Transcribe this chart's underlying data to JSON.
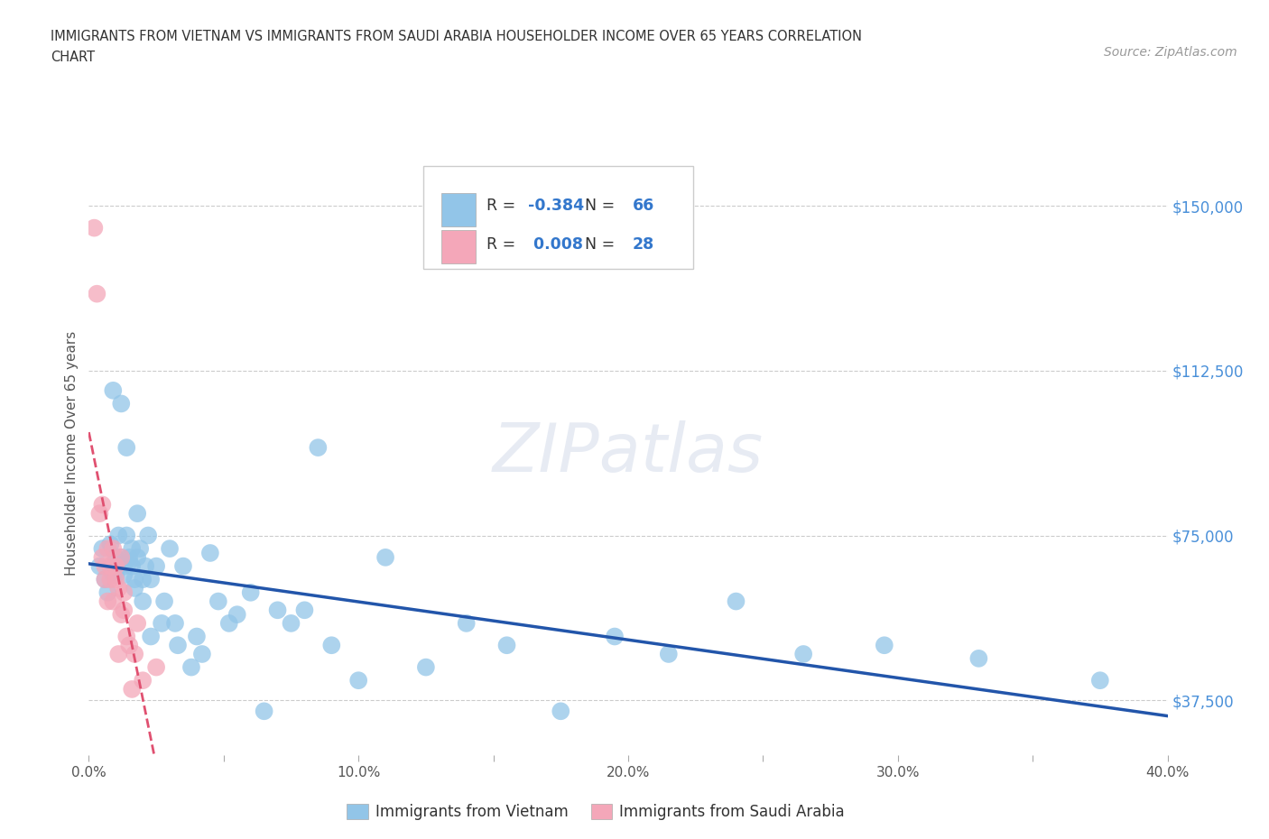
{
  "title_line1": "IMMIGRANTS FROM VIETNAM VS IMMIGRANTS FROM SAUDI ARABIA HOUSEHOLDER INCOME OVER 65 YEARS CORRELATION",
  "title_line2": "CHART",
  "source": "Source: ZipAtlas.com",
  "ylabel": "Householder Income Over 65 years",
  "xlim": [
    0.0,
    0.4
  ],
  "ylim": [
    25000,
    162500
  ],
  "yticks": [
    37500,
    75000,
    112500,
    150000
  ],
  "ytick_labels": [
    "$37,500",
    "$75,000",
    "$112,500",
    "$150,000"
  ],
  "xticks": [
    0.0,
    0.05,
    0.1,
    0.15,
    0.2,
    0.25,
    0.3,
    0.35,
    0.4
  ],
  "xtick_labels": [
    "0.0%",
    "",
    "10.0%",
    "",
    "20.0%",
    "",
    "30.0%",
    "",
    "40.0%"
  ],
  "vietnam_color": "#92c5e8",
  "saudi_color": "#f4a7b9",
  "vietnam_R": -0.384,
  "vietnam_N": 66,
  "saudi_R": 0.008,
  "saudi_N": 28,
  "vietnam_line_color": "#2255aa",
  "saudi_line_color": "#e05070",
  "watermark": "ZIPatlas",
  "background_color": "#ffffff",
  "grid_color": "#cccccc",
  "vietnam_x": [
    0.004,
    0.005,
    0.006,
    0.007,
    0.008,
    0.009,
    0.009,
    0.01,
    0.01,
    0.011,
    0.011,
    0.012,
    0.012,
    0.013,
    0.013,
    0.014,
    0.014,
    0.015,
    0.015,
    0.016,
    0.016,
    0.017,
    0.017,
    0.018,
    0.018,
    0.019,
    0.02,
    0.02,
    0.021,
    0.022,
    0.023,
    0.023,
    0.025,
    0.027,
    0.028,
    0.03,
    0.032,
    0.033,
    0.035,
    0.038,
    0.04,
    0.042,
    0.045,
    0.048,
    0.052,
    0.055,
    0.06,
    0.065,
    0.07,
    0.075,
    0.08,
    0.085,
    0.09,
    0.1,
    0.11,
    0.125,
    0.14,
    0.155,
    0.175,
    0.195,
    0.215,
    0.24,
    0.265,
    0.295,
    0.33,
    0.375
  ],
  "vietnam_y": [
    68000,
    72000,
    65000,
    62000,
    73000,
    108000,
    66000,
    70000,
    66000,
    75000,
    68000,
    105000,
    70000,
    68000,
    66000,
    95000,
    75000,
    70000,
    69000,
    72000,
    68000,
    65000,
    63000,
    80000,
    70000,
    72000,
    65000,
    60000,
    68000,
    75000,
    65000,
    52000,
    68000,
    55000,
    60000,
    72000,
    55000,
    50000,
    68000,
    45000,
    52000,
    48000,
    71000,
    60000,
    55000,
    57000,
    62000,
    35000,
    58000,
    55000,
    58000,
    95000,
    50000,
    42000,
    70000,
    45000,
    55000,
    50000,
    35000,
    52000,
    48000,
    60000,
    48000,
    50000,
    47000,
    42000
  ],
  "saudi_x": [
    0.002,
    0.003,
    0.004,
    0.005,
    0.005,
    0.006,
    0.006,
    0.007,
    0.007,
    0.008,
    0.008,
    0.009,
    0.009,
    0.01,
    0.01,
    0.011,
    0.011,
    0.012,
    0.012,
    0.013,
    0.013,
    0.014,
    0.015,
    0.016,
    0.017,
    0.018,
    0.02,
    0.025
  ],
  "saudi_y": [
    145000,
    130000,
    80000,
    70000,
    82000,
    65000,
    68000,
    72000,
    60000,
    68000,
    65000,
    72000,
    60000,
    68000,
    65000,
    63000,
    48000,
    70000,
    57000,
    62000,
    58000,
    52000,
    50000,
    40000,
    48000,
    55000,
    42000,
    45000
  ]
}
